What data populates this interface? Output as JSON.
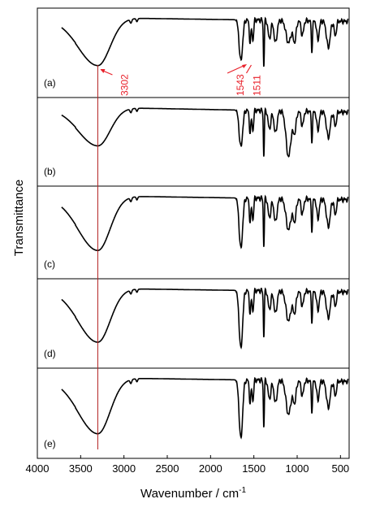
{
  "chart_data": {
    "type": "line",
    "xlabel_main": "Wavenumber / cm",
    "xlabel_sup": "-1",
    "ylabel": "Transmittance",
    "xlim": [
      4000,
      400
    ],
    "x_ticks": [
      4000,
      3500,
      3000,
      2500,
      2000,
      1500,
      1000,
      500
    ],
    "x_tick_labels": [
      "4000",
      "3500",
      "3000",
      "2500",
      "2000",
      "1500",
      "1000",
      "500"
    ],
    "reference_line_x": 3302,
    "reference_line_color": "#b22222",
    "annotation_color": "#e8202a",
    "curve_color": "#000000",
    "annotations": [
      {
        "label": "3302",
        "x": 3302
      },
      {
        "label": "1543",
        "x": 1543
      },
      {
        "label": "1511",
        "x": 1511
      }
    ],
    "series": [
      {
        "name": "(a)",
        "label": "(a)"
      },
      {
        "name": "(b)",
        "label": "(b)"
      },
      {
        "name": "(c)",
        "label": "(c)"
      },
      {
        "name": "(d)",
        "label": "(d)"
      },
      {
        "name": "(e)",
        "label": "(e)"
      }
    ]
  }
}
